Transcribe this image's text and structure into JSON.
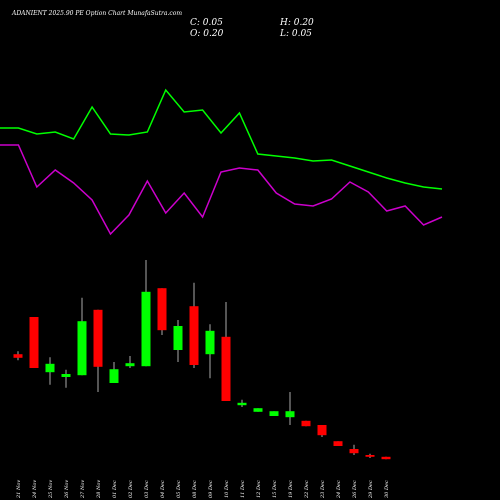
{
  "chart_data": [
    {
      "type": "candlestick",
      "title": "ADANIENT 2025.90 PE Option Chart MunafaSutra.com",
      "summary": {
        "close": "C: 0.05",
        "high": "H: 0.20",
        "open": "O: 0.20",
        "low": "L: 0.05"
      },
      "categories": [
        "21 Nov",
        "24 Nov",
        "25 Nov",
        "26 Nov",
        "27 Nov",
        "28 Nov",
        "01 Dec",
        "02 Dec",
        "03 Dec",
        "04 Dec",
        "05 Dec",
        "08 Dec",
        "09 Dec",
        "10 Dec",
        "11 Dec",
        "12 Dec",
        "15 Dec",
        "19 Dec",
        "22 Dec",
        "23 Dec",
        "24 Dec",
        "26 Dec",
        "29 Dec",
        "30 Dec"
      ],
      "open": [
        1.93,
        2.55,
        1.63,
        1.55,
        1.58,
        2.67,
        1.45,
        1.73,
        1.73,
        3.03,
        2.0,
        2.73,
        1.93,
        2.22,
        1.08,
        0.97,
        0.9,
        0.88,
        0.82,
        0.75,
        0.48,
        0.35,
        0.25,
        0.22
      ],
      "high": [
        1.98,
        2.55,
        1.88,
        1.67,
        2.87,
        2.67,
        1.8,
        1.9,
        3.5,
        3.03,
        2.5,
        3.12,
        2.43,
        2.8,
        1.17,
        1.03,
        0.98,
        1.3,
        0.82,
        0.75,
        0.48,
        0.42,
        0.27,
        0.22
      ],
      "low": [
        1.83,
        1.7,
        1.42,
        1.37,
        1.58,
        1.3,
        1.45,
        1.7,
        1.73,
        2.25,
        1.8,
        1.7,
        1.53,
        1.15,
        1.05,
        0.97,
        0.9,
        0.75,
        0.73,
        0.55,
        0.4,
        0.25,
        0.2,
        0.18
      ],
      "close": [
        1.87,
        1.7,
        1.77,
        1.6,
        2.48,
        1.72,
        1.68,
        1.78,
        2.97,
        2.33,
        2.4,
        1.75,
        2.32,
        1.15,
        1.12,
        1.03,
        0.98,
        0.98,
        0.73,
        0.58,
        0.4,
        0.28,
        0.22,
        0.18
      ],
      "up_color": "#00ff00",
      "down_color": "#ff0000",
      "ylim": [
        0,
        3.5
      ]
    },
    {
      "type": "line",
      "series": [
        {
          "color": "#00ff00",
          "values": [
            61,
            61,
            58,
            59,
            55.5,
            71.5,
            58,
            57.5,
            59,
            80,
            69,
            70,
            58.5,
            68.5,
            48,
            47,
            46,
            44.5,
            45,
            42,
            39,
            36,
            33.5,
            31.5,
            30.5
          ]
        },
        {
          "color": "#cc00cc",
          "values": [
            52.5,
            52.5,
            31.5,
            40,
            33.5,
            25,
            8,
            17.5,
            34.5,
            18.5,
            28.5,
            16.5,
            39,
            41,
            40,
            28.5,
            23,
            22,
            25.5,
            34,
            29,
            19.5,
            22,
            12.5,
            16.5
          ]
        }
      ],
      "ylim": [
        0,
        100
      ]
    }
  ]
}
